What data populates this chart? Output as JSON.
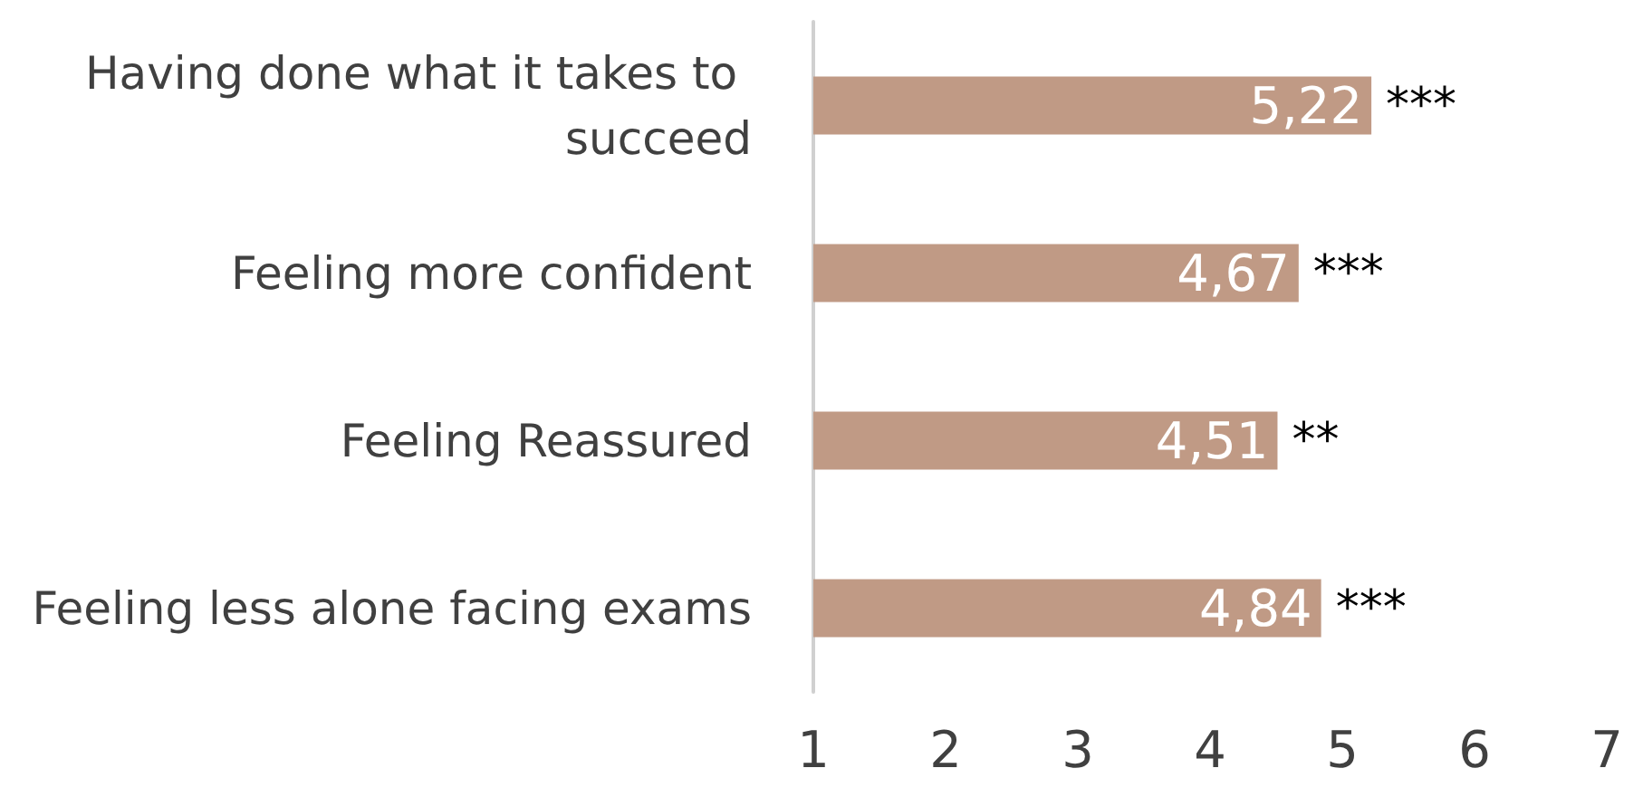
{
  "chart_data": {
    "type": "bar",
    "orientation": "horizontal",
    "categories": [
      "Having done what it takes to succeed",
      "Feeling more confident",
      "Feeling Reassured",
      "Feeling less alone facing exams"
    ],
    "values": [
      5.22,
      4.67,
      4.51,
      4.84
    ],
    "value_labels": [
      "5,22",
      "4,67",
      "4,51",
      "4,84"
    ],
    "color": "#c09a85",
    "xlim": [
      1,
      7
    ],
    "xticks": [
      1,
      2,
      3,
      4,
      5,
      6,
      7
    ],
    "annotations": [
      {
        "text": "***",
        "x": 5.22,
        "y": "Having done what it takes to succeed"
      },
      {
        "text": "***",
        "x": 4.67,
        "y": "Feeling more confident"
      },
      {
        "text": "**",
        "x": 4.51,
        "y": "Feeling Reassured"
      },
      {
        "text": "***",
        "x": 4.84,
        "y": "Feeling less alone facing exams"
      }
    ]
  }
}
